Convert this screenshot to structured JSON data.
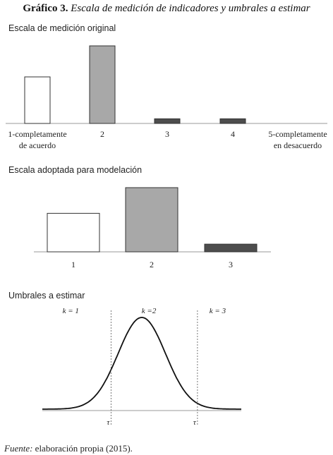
{
  "figure": {
    "title_label": "Gráfico 3.",
    "title_text": "Escala de medición de indicadores y umbrales a estimar"
  },
  "colors": {
    "open": "#ffffff",
    "mid": "#a8a8a8",
    "dark": "#4d4d4d",
    "stroke": "#333333",
    "axis": "#9a9a9a"
  },
  "chart_data": [
    {
      "type": "bar",
      "title": "Escala de medición original",
      "categories": [
        "1-completamente de acuerdo",
        "2",
        "3",
        "4",
        "5-completamente en desacuerdo"
      ],
      "category_lines": [
        [
          "1-completamente",
          "de acuerdo"
        ],
        [
          "2"
        ],
        [
          "3"
        ],
        [
          "4"
        ],
        [
          "5-completamente",
          "en desacuerdo"
        ]
      ],
      "values": [
        60,
        100,
        6,
        6,
        0
      ],
      "fills": [
        "open",
        "mid",
        "dark",
        "dark",
        "none"
      ],
      "ylim": [
        0,
        100
      ],
      "grid": false
    },
    {
      "type": "bar",
      "title": "Escala adoptada para modelación",
      "categories": [
        "1",
        "2",
        "3"
      ],
      "values": [
        60,
        100,
        12
      ],
      "fills": [
        "open",
        "mid",
        "dark"
      ],
      "ylim": [
        0,
        100
      ],
      "grid": false
    },
    {
      "type": "line",
      "title": "Umbrales a estimar",
      "series": [
        {
          "distribution": "normal",
          "mean": 0,
          "sd": 1
        }
      ],
      "xlim": [
        -4.2,
        4.2
      ],
      "thresholds": [
        {
          "label_base": "τ",
          "label_sub": "i1",
          "x": -1.3
        },
        {
          "label_base": "τ",
          "label_sub": "i2",
          "x": 2.35
        }
      ],
      "regions": [
        {
          "label": "k = 1",
          "x": -3.0
        },
        {
          "label": "k =2",
          "x": 0.3
        },
        {
          "label": "k = 3",
          "x": 3.2
        }
      ]
    }
  ],
  "source": {
    "label": "Fuente:",
    "text": " elaboración propia (2015)."
  }
}
